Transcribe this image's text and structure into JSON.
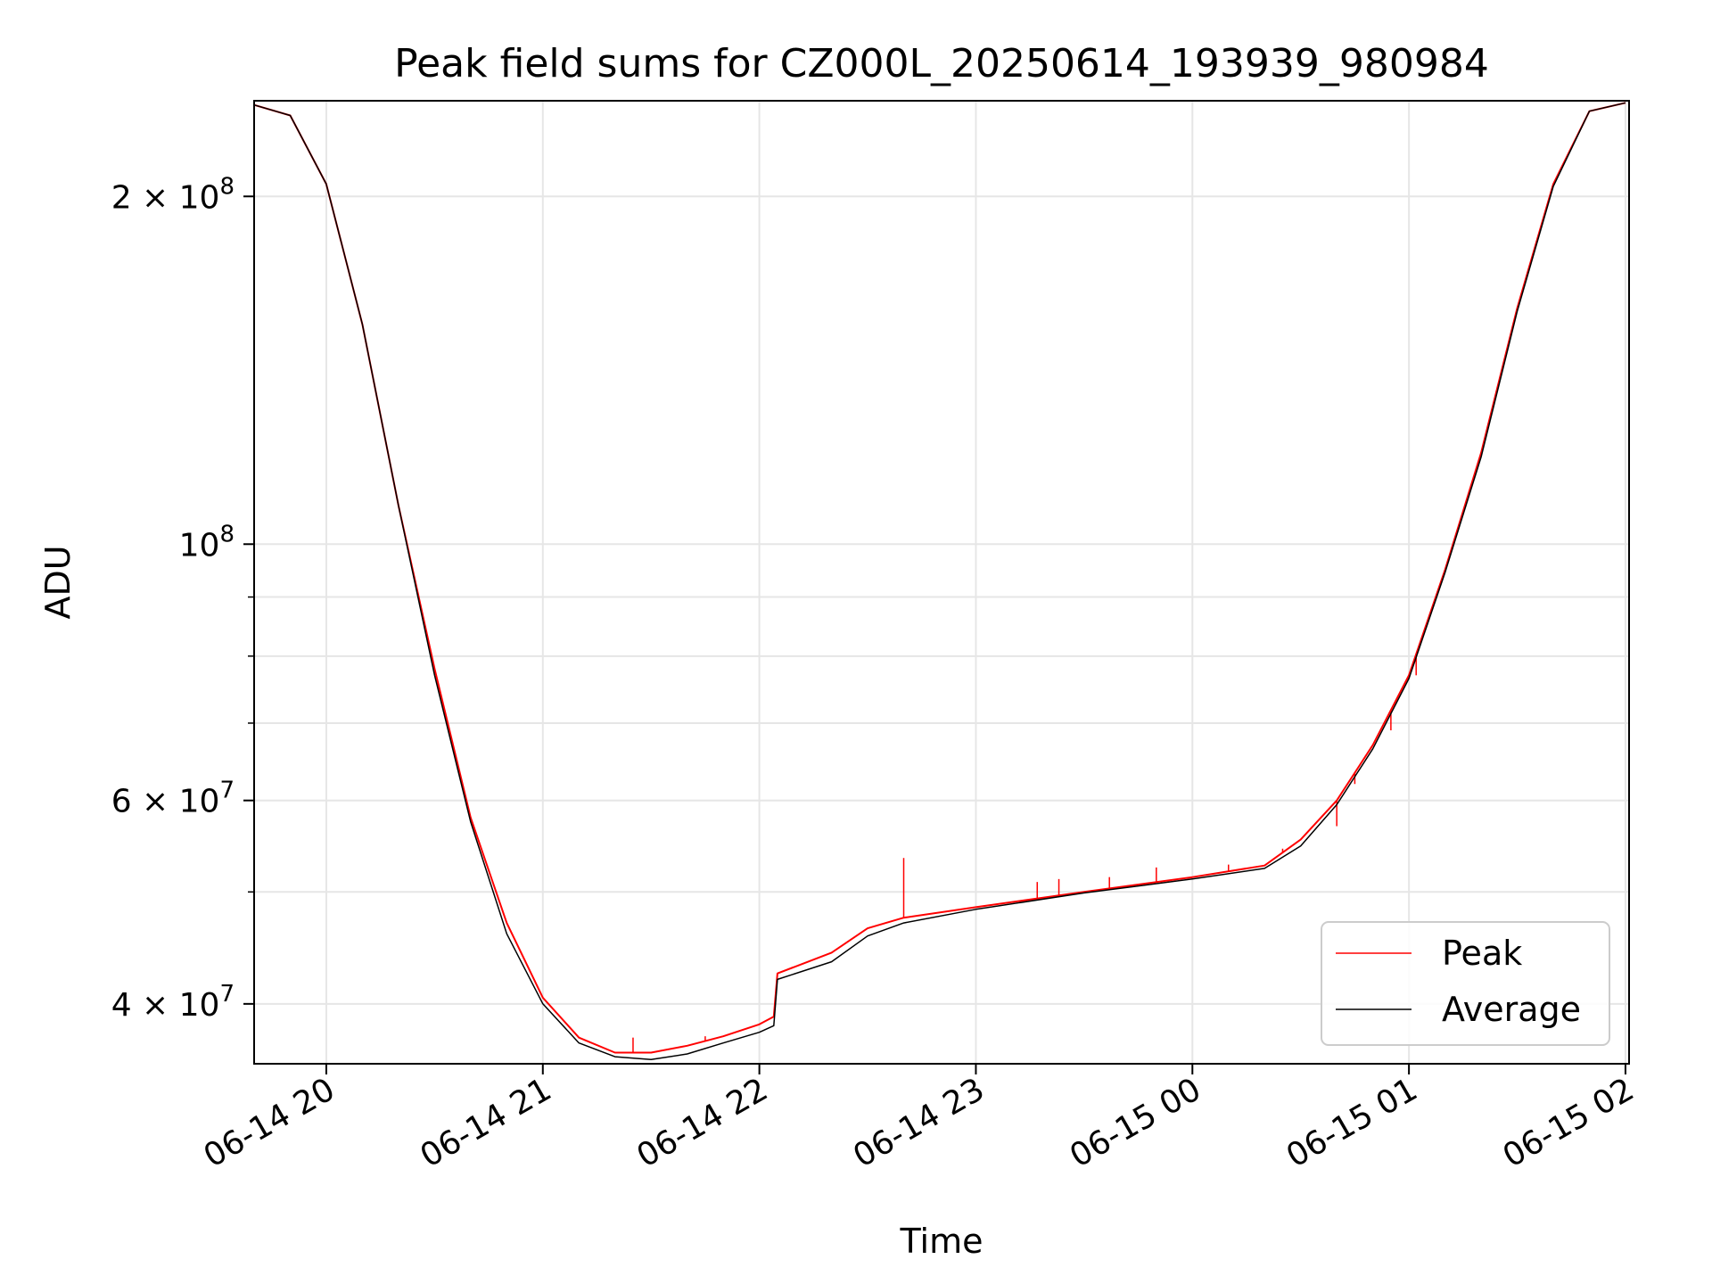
{
  "chart_data": {
    "type": "line",
    "title": "Peak field sums for CZ000L_20250614_193939_980984",
    "xlabel": "Time",
    "ylabel": "ADU",
    "yscale": "log",
    "ylim": [
      35500000,
      242000000
    ],
    "xlim": [
      "2025-06-14T19:40",
      "2025-06-15T02:01"
    ],
    "grid": true,
    "legend_position": "lower right",
    "x_ticks": [
      {
        "value": "2025-06-14T20:00",
        "label": "06-14 20"
      },
      {
        "value": "2025-06-14T21:00",
        "label": "06-14 21"
      },
      {
        "value": "2025-06-14T22:00",
        "label": "06-14 22"
      },
      {
        "value": "2025-06-14T23:00",
        "label": "06-14 23"
      },
      {
        "value": "2025-06-15T00:00",
        "label": "06-15 00"
      },
      {
        "value": "2025-06-15T01:00",
        "label": "06-15 01"
      },
      {
        "value": "2025-06-15T02:00",
        "label": "06-15 02"
      }
    ],
    "y_ticks": [
      {
        "value": 200000000,
        "base": "2 × 10",
        "exp": "8"
      },
      {
        "value": 100000000,
        "base": "10",
        "exp": "8"
      },
      {
        "value": 60000000,
        "base": "6 × 10",
        "exp": "7"
      },
      {
        "value": 40000000,
        "base": "4 × 10",
        "exp": "7"
      }
    ],
    "y_minor_ticks": [
      50000000,
      70000000,
      80000000,
      90000000
    ],
    "series": [
      {
        "name": "Peak",
        "color": "#ff0000",
        "x": [
          "2025-06-14T19:40",
          "2025-06-14T19:50",
          "2025-06-14T20:00",
          "2025-06-14T20:10",
          "2025-06-14T20:20",
          "2025-06-14T20:30",
          "2025-06-14T20:40",
          "2025-06-14T20:50",
          "2025-06-14T21:00",
          "2025-06-14T21:10",
          "2025-06-14T21:20",
          "2025-06-14T21:30",
          "2025-06-14T21:40",
          "2025-06-14T21:50",
          "2025-06-14T22:00",
          "2025-06-14T22:04",
          "2025-06-14T22:05",
          "2025-06-14T22:20",
          "2025-06-14T22:30",
          "2025-06-14T22:40",
          "2025-06-14T23:00",
          "2025-06-14T23:30",
          "2025-06-15T00:00",
          "2025-06-15T00:20",
          "2025-06-15T00:30",
          "2025-06-15T00:40",
          "2025-06-15T00:50",
          "2025-06-15T01:00",
          "2025-06-15T01:10",
          "2025-06-15T01:20",
          "2025-06-15T01:30",
          "2025-06-15T01:40",
          "2025-06-15T01:50",
          "2025-06-15T02:00"
        ],
        "y": [
          240000000,
          235000000,
          205000000,
          155000000,
          108000000,
          78000000,
          58000000,
          47000000,
          40500000,
          37400000,
          36300000,
          36300000,
          36800000,
          37500000,
          38400000,
          39000000,
          42500000,
          44300000,
          46500000,
          47500000,
          48500000,
          50000000,
          51500000,
          52700000,
          55500000,
          60000000,
          67000000,
          77000000,
          95000000,
          120000000,
          160000000,
          205000000,
          237000000,
          241000000
        ],
        "spikes": [
          {
            "x": "2025-06-14T22:40",
            "y": 53500000
          },
          {
            "x": "2025-06-14T21:25",
            "y": 37400000
          },
          {
            "x": "2025-06-14T21:45",
            "y": 37500000
          },
          {
            "x": "2025-06-14T23:17",
            "y": 51000000
          },
          {
            "x": "2025-06-14T23:23",
            "y": 51300000
          },
          {
            "x": "2025-06-14T23:37",
            "y": 51500000
          },
          {
            "x": "2025-06-14T23:50",
            "y": 52500000
          },
          {
            "x": "2025-06-15T00:10",
            "y": 52800000
          },
          {
            "x": "2025-06-15T00:25",
            "y": 54500000
          },
          {
            "x": "2025-06-15T00:40",
            "y": 57000000
          },
          {
            "x": "2025-06-15T00:45",
            "y": 62000000
          },
          {
            "x": "2025-06-15T00:55",
            "y": 69000000
          },
          {
            "x": "2025-06-15T01:02",
            "y": 77000000
          }
        ]
      },
      {
        "name": "Average",
        "color": "#000000",
        "x": [
          "2025-06-14T19:40",
          "2025-06-14T19:50",
          "2025-06-14T20:00",
          "2025-06-14T20:10",
          "2025-06-14T20:20",
          "2025-06-14T20:30",
          "2025-06-14T20:40",
          "2025-06-14T20:50",
          "2025-06-14T21:00",
          "2025-06-14T21:10",
          "2025-06-14T21:20",
          "2025-06-14T21:30",
          "2025-06-14T21:40",
          "2025-06-14T21:50",
          "2025-06-14T22:00",
          "2025-06-14T22:04",
          "2025-06-14T22:05",
          "2025-06-14T22:20",
          "2025-06-14T22:30",
          "2025-06-14T22:40",
          "2025-06-14T23:00",
          "2025-06-14T23:30",
          "2025-06-15T00:00",
          "2025-06-15T00:20",
          "2025-06-15T00:30",
          "2025-06-15T00:40",
          "2025-06-15T00:50",
          "2025-06-15T01:00",
          "2025-06-15T01:10",
          "2025-06-15T01:20",
          "2025-06-15T01:30",
          "2025-06-15T01:40",
          "2025-06-15T01:50",
          "2025-06-15T02:00"
        ],
        "y": [
          240000000,
          235000000,
          205000000,
          155000000,
          108000000,
          77000000,
          57500000,
          46000000,
          40000000,
          37000000,
          36000000,
          35800000,
          36200000,
          37000000,
          37800000,
          38300000,
          42000000,
          43500000,
          45800000,
          47000000,
          48300000,
          49900000,
          51300000,
          52400000,
          54800000,
          59500000,
          66500000,
          76500000,
          94500000,
          119000000,
          159000000,
          204000000,
          237000000,
          241000000
        ]
      }
    ]
  }
}
